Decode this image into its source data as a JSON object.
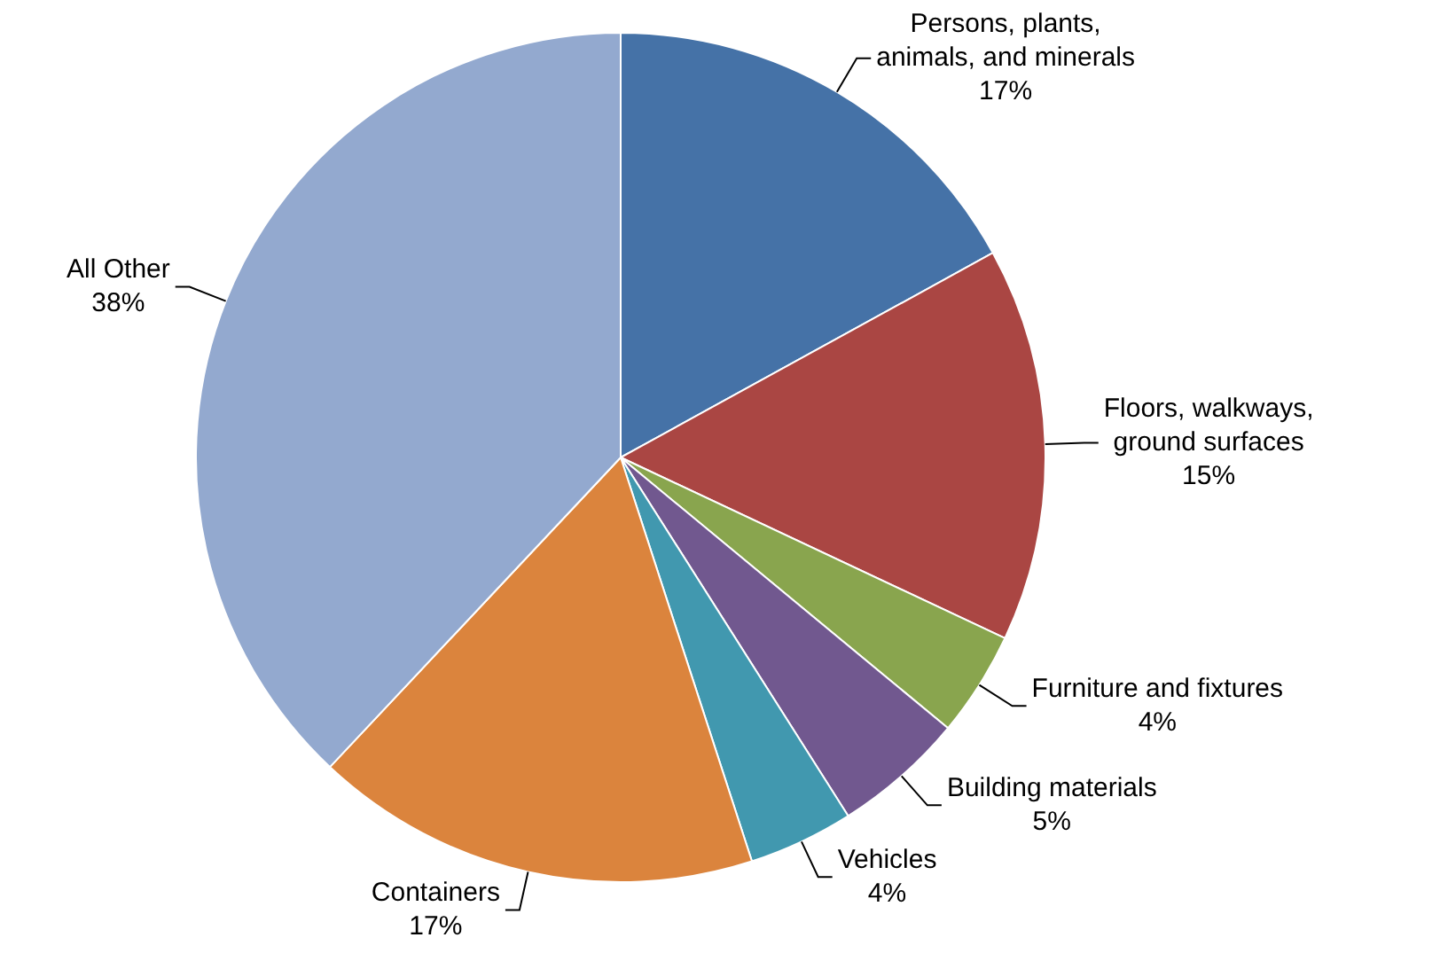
{
  "chart_data": {
    "type": "pie",
    "categories": [
      "Persons, plants, animals, and minerals",
      "Floors, walkways, ground surfaces",
      "Furniture and fixtures",
      "Building materials",
      "Vehicles",
      "Containers",
      "All Other"
    ],
    "values": [
      17,
      15,
      4,
      5,
      4,
      17,
      38
    ],
    "colors": [
      "#4572a7",
      "#aa4643",
      "#89a54e",
      "#71588f",
      "#4198af",
      "#db843d",
      "#93a9cf"
    ],
    "value_labels": [
      "17%",
      "15%",
      "4%",
      "5%",
      "4%",
      "17%",
      "38%"
    ],
    "legend": false
  }
}
